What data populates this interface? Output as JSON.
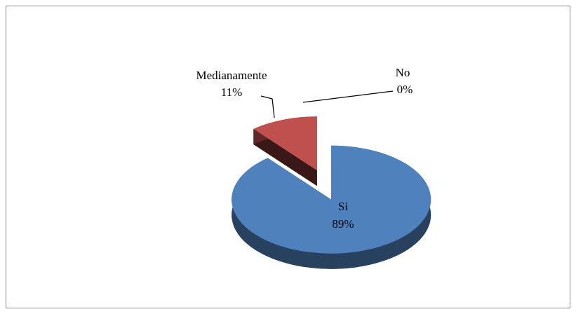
{
  "chart_data": {
    "type": "pie",
    "categories": [
      "Si",
      "Medianamente",
      "No"
    ],
    "values": [
      89,
      11,
      0
    ],
    "value_labels": [
      "89%",
      "11%",
      "0%"
    ],
    "colors": [
      "#4f81bd",
      "#c0504d",
      "#9bbb59"
    ]
  }
}
